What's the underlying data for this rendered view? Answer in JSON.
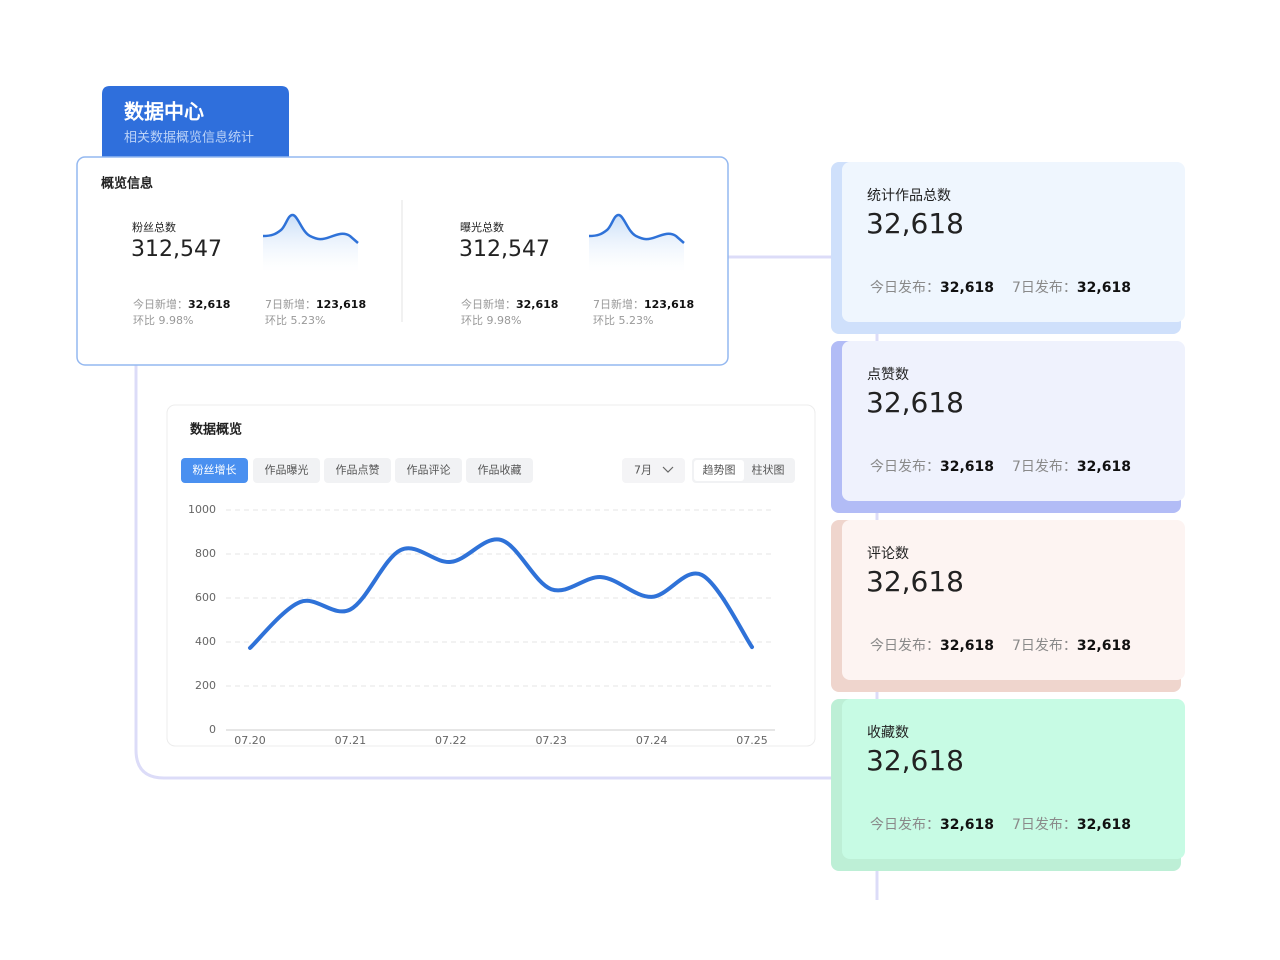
{
  "header": {
    "title": "数据中心",
    "subtitle": "相关数据概览信息统计"
  },
  "overview": {
    "title": "概览信息",
    "items": [
      {
        "label": "粉丝总数",
        "value": "312,547",
        "stats": [
          {
            "label": "今日新增：",
            "value": "32,618",
            "ratio": "环比 9.98%"
          },
          {
            "label": "7日新增：",
            "value": "123,618",
            "ratio": "环比 5.23%"
          }
        ]
      },
      {
        "label": "曝光总数",
        "value": "312,547",
        "stats": [
          {
            "label": "今日新增：",
            "value": "32,618",
            "ratio": "环比 9.98%"
          },
          {
            "label": "7日新增：",
            "value": "123,618",
            "ratio": "环比 5.23%"
          }
        ]
      }
    ]
  },
  "panel": {
    "title": "数据概览",
    "tabs": [
      "粉丝增长",
      "作品曝光",
      "作品点赞",
      "作品评论",
      "作品收藏"
    ],
    "month": "7月",
    "views": [
      "趋势图",
      "柱状图"
    ]
  },
  "chart_data": {
    "type": "line",
    "categories": [
      "07.20",
      null,
      "07.21",
      null,
      "07.22",
      null,
      "07.23",
      null,
      "07.24",
      null,
      "07.25"
    ],
    "values": [
      373,
      582,
      548,
      818,
      764,
      864,
      640,
      695,
      605,
      705,
      377
    ],
    "color": "#2f72d8",
    "ylim": [
      0,
      1000
    ],
    "yticks": [
      0,
      200,
      400,
      600,
      800,
      1000
    ],
    "grid": true
  },
  "cards": [
    {
      "title": "统计作品总数",
      "value": "32,618",
      "stats": [
        {
          "label": "今日发布：",
          "value": "32,618"
        },
        {
          "label": "7日发布：",
          "value": "32,618"
        }
      ]
    },
    {
      "title": "点赞数",
      "value": "32,618",
      "stats": [
        {
          "label": "今日发布：",
          "value": "32,618"
        },
        {
          "label": "7日发布：",
          "value": "32,618"
        }
      ]
    },
    {
      "title": "评论数",
      "value": "32,618",
      "stats": [
        {
          "label": "今日发布：",
          "value": "32,618"
        },
        {
          "label": "7日发布：",
          "value": "32,618"
        }
      ]
    },
    {
      "title": "收藏数",
      "value": "32,618",
      "stats": [
        {
          "label": "今日发布：",
          "value": "32,618"
        },
        {
          "label": "7日发布：",
          "value": "32,618"
        }
      ]
    }
  ]
}
